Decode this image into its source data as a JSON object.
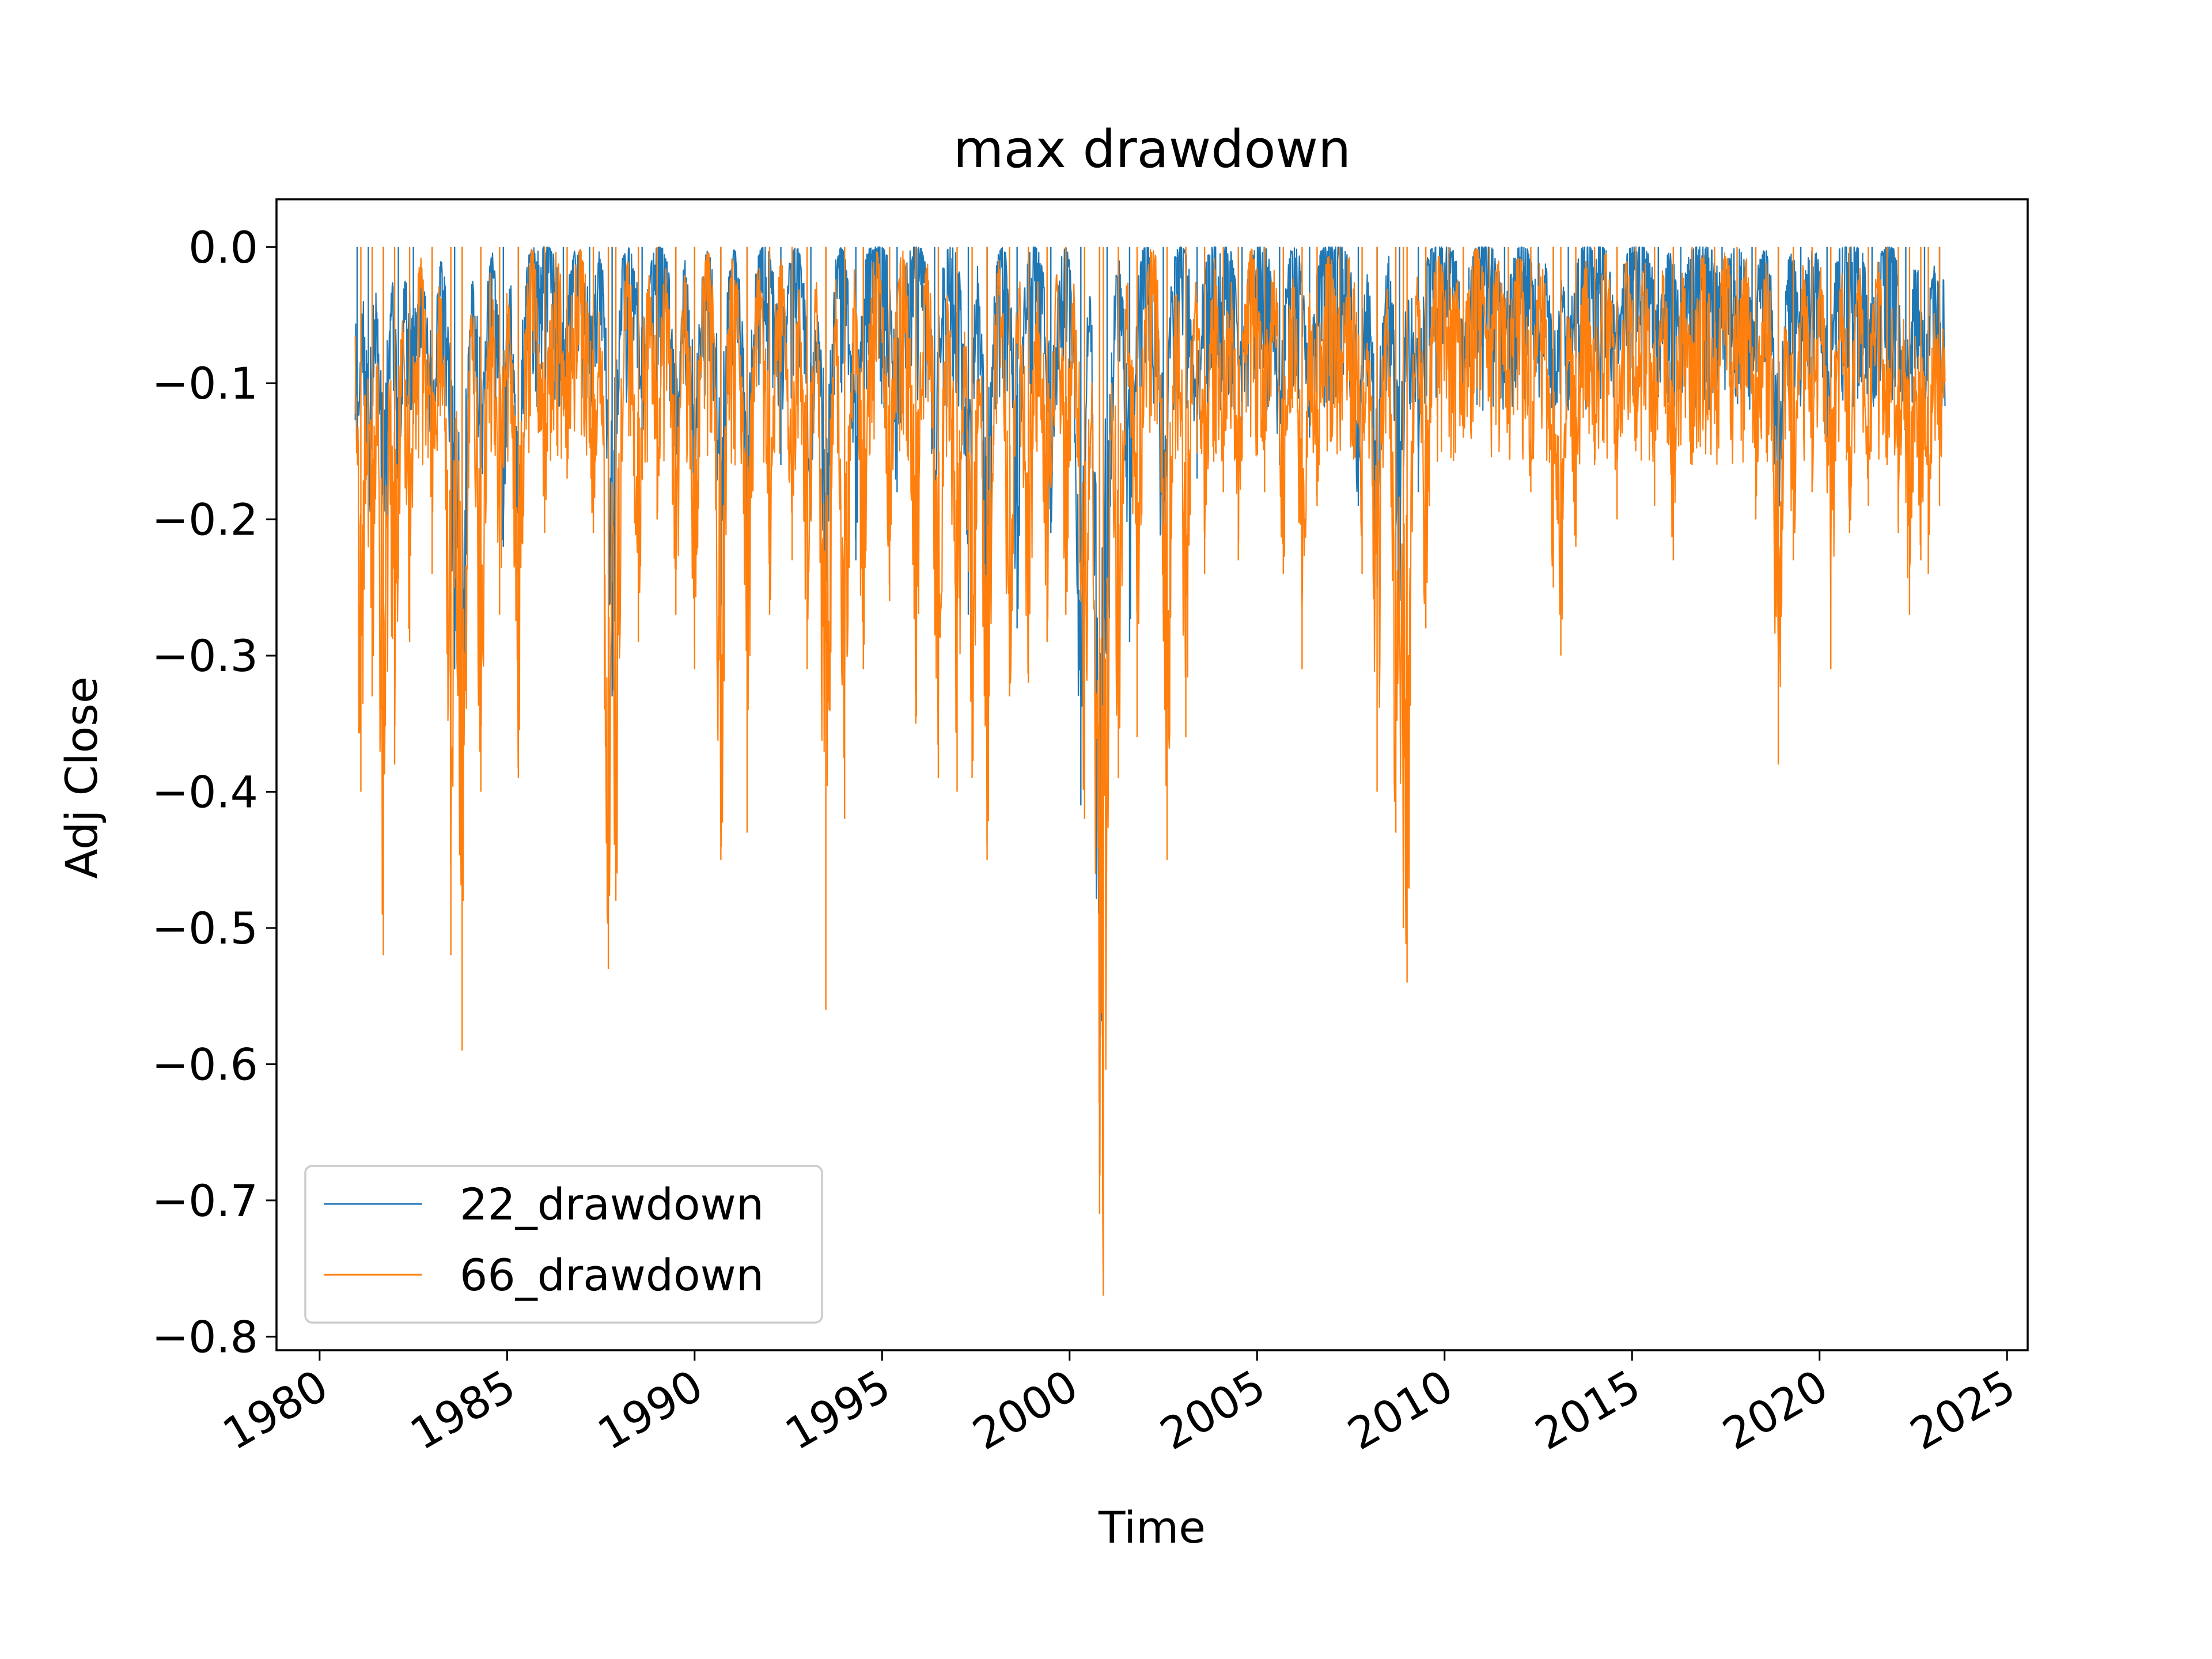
{
  "chart_data": {
    "type": "line",
    "title": "max drawdown",
    "xlabel": "Time",
    "ylabel": "Adj Close",
    "xlim": [
      1978.85,
      2025.55
    ],
    "ylim": [
      -0.81,
      0.035
    ],
    "xticks": [
      1980,
      1985,
      1990,
      1995,
      2000,
      2005,
      2010,
      2015,
      2020,
      2025
    ],
    "xtick_labels": [
      "1980",
      "1985",
      "1990",
      "1995",
      "2000",
      "2005",
      "2010",
      "2015",
      "2020",
      "2025"
    ],
    "yticks": [
      0.0,
      -0.1,
      -0.2,
      -0.3,
      -0.4,
      -0.5,
      -0.6,
      -0.7,
      -0.8
    ],
    "ytick_labels": [
      "0.0",
      "−0.1",
      "−0.2",
      "−0.3",
      "−0.4",
      "−0.5",
      "−0.6",
      "−0.7",
      "−0.8"
    ],
    "grid": false,
    "legend_position": "lower-left",
    "series": [
      {
        "name": "22_drawdown",
        "color": "#1f77b4",
        "minima": [
          [
            1981.0,
            -0.15
          ],
          [
            1981.3,
            -0.21
          ],
          [
            1981.7,
            -0.28
          ],
          [
            1982.1,
            -0.17
          ],
          [
            1982.5,
            -0.13
          ],
          [
            1983.0,
            -0.16
          ],
          [
            1983.6,
            -0.31
          ],
          [
            1983.8,
            -0.41
          ],
          [
            1984.3,
            -0.19
          ],
          [
            1984.9,
            -0.22
          ],
          [
            1985.3,
            -0.24
          ],
          [
            1986.5,
            -0.12
          ],
          [
            1987.2,
            -0.09
          ],
          [
            1987.8,
            -0.33
          ],
          [
            1988.6,
            -0.14
          ],
          [
            1989.5,
            -0.18
          ],
          [
            1990.0,
            -0.22
          ],
          [
            1990.7,
            -0.27
          ],
          [
            1991.4,
            -0.25
          ],
          [
            1992.3,
            -0.16
          ],
          [
            1993.1,
            -0.2
          ],
          [
            1993.5,
            -0.29
          ],
          [
            1994.3,
            -0.23
          ],
          [
            1995.4,
            -0.18
          ],
          [
            1996.4,
            -0.22
          ],
          [
            1997.3,
            -0.27
          ],
          [
            1997.8,
            -0.3
          ],
          [
            1998.6,
            -0.28
          ],
          [
            1999.5,
            -0.21
          ],
          [
            2000.3,
            -0.41
          ],
          [
            2000.8,
            -0.68
          ],
          [
            2001.0,
            -0.33
          ],
          [
            2001.6,
            -0.29
          ],
          [
            2002.5,
            -0.27
          ],
          [
            2003.4,
            -0.17
          ],
          [
            2004.6,
            -0.13
          ],
          [
            2005.6,
            -0.16
          ],
          [
            2006.4,
            -0.14
          ],
          [
            2007.7,
            -0.19
          ],
          [
            2008.2,
            -0.25
          ],
          [
            2008.8,
            -0.28
          ],
          [
            2009.3,
            -0.18
          ],
          [
            2010.5,
            -0.09
          ],
          [
            2011.6,
            -0.1
          ],
          [
            2012.5,
            -0.08
          ],
          [
            2012.9,
            -0.14
          ],
          [
            2013.3,
            -0.12
          ],
          [
            2014.6,
            -0.09
          ],
          [
            2015.7,
            -0.11
          ],
          [
            2016.3,
            -0.08
          ],
          [
            2017.4,
            -0.06
          ],
          [
            2018.2,
            -0.09
          ],
          [
            2018.9,
            -0.23
          ],
          [
            2019.5,
            -0.08
          ],
          [
            2020.2,
            -0.16
          ],
          [
            2021.4,
            -0.1
          ],
          [
            2022.3,
            -0.15
          ],
          [
            2022.8,
            -0.14
          ],
          [
            2023.2,
            -0.06
          ]
        ]
      },
      {
        "name": "66_drawdown",
        "color": "#ff7f0e",
        "minima": [
          [
            1981.1,
            -0.4
          ],
          [
            1981.4,
            -0.33
          ],
          [
            1981.7,
            -0.52
          ],
          [
            1982.0,
            -0.38
          ],
          [
            1982.4,
            -0.29
          ],
          [
            1983.0,
            -0.24
          ],
          [
            1983.5,
            -0.52
          ],
          [
            1983.8,
            -0.59
          ],
          [
            1984.3,
            -0.4
          ],
          [
            1984.8,
            -0.27
          ],
          [
            1985.3,
            -0.39
          ],
          [
            1986.0,
            -0.21
          ],
          [
            1986.6,
            -0.17
          ],
          [
            1987.3,
            -0.21
          ],
          [
            1987.7,
            -0.53
          ],
          [
            1987.9,
            -0.48
          ],
          [
            1988.5,
            -0.29
          ],
          [
            1989.0,
            -0.2
          ],
          [
            1989.5,
            -0.27
          ],
          [
            1990.0,
            -0.31
          ],
          [
            1990.7,
            -0.45
          ],
          [
            1991.4,
            -0.43
          ],
          [
            1992.0,
            -0.27
          ],
          [
            1992.6,
            -0.23
          ],
          [
            1993.0,
            -0.31
          ],
          [
            1993.5,
            -0.56
          ],
          [
            1994.0,
            -0.42
          ],
          [
            1994.5,
            -0.31
          ],
          [
            1995.2,
            -0.26
          ],
          [
            1995.9,
            -0.35
          ],
          [
            1996.5,
            -0.39
          ],
          [
            1997.0,
            -0.4
          ],
          [
            1997.4,
            -0.39
          ],
          [
            1997.8,
            -0.45
          ],
          [
            1998.4,
            -0.33
          ],
          [
            1998.9,
            -0.32
          ],
          [
            1999.4,
            -0.29
          ],
          [
            1999.9,
            -0.27
          ],
          [
            2000.4,
            -0.42
          ],
          [
            2000.8,
            -0.71
          ],
          [
            2000.9,
            -0.77
          ],
          [
            2001.3,
            -0.39
          ],
          [
            2001.8,
            -0.36
          ],
          [
            2002.6,
            -0.45
          ],
          [
            2003.1,
            -0.36
          ],
          [
            2003.6,
            -0.24
          ],
          [
            2004.1,
            -0.18
          ],
          [
            2004.5,
            -0.23
          ],
          [
            2005.2,
            -0.18
          ],
          [
            2005.7,
            -0.24
          ],
          [
            2006.2,
            -0.31
          ],
          [
            2006.6,
            -0.19
          ],
          [
            2007.2,
            -0.12
          ],
          [
            2007.8,
            -0.24
          ],
          [
            2008.2,
            -0.4
          ],
          [
            2008.7,
            -0.43
          ],
          [
            2008.9,
            -0.5
          ],
          [
            2009.0,
            -0.54
          ],
          [
            2009.5,
            -0.28
          ],
          [
            2010.1,
            -0.09
          ],
          [
            2010.5,
            -0.14
          ],
          [
            2011.2,
            -0.11
          ],
          [
            2011.7,
            -0.13
          ],
          [
            2012.3,
            -0.18
          ],
          [
            2012.9,
            -0.25
          ],
          [
            2013.1,
            -0.3
          ],
          [
            2013.5,
            -0.22
          ],
          [
            2014.0,
            -0.16
          ],
          [
            2014.6,
            -0.2
          ],
          [
            2015.1,
            -0.15
          ],
          [
            2015.6,
            -0.19
          ],
          [
            2016.1,
            -0.23
          ],
          [
            2016.6,
            -0.16
          ],
          [
            2017.2,
            -0.13
          ],
          [
            2017.8,
            -0.11
          ],
          [
            2018.3,
            -0.2
          ],
          [
            2018.9,
            -0.38
          ],
          [
            2019.3,
            -0.23
          ],
          [
            2019.8,
            -0.18
          ],
          [
            2020.3,
            -0.31
          ],
          [
            2020.8,
            -0.21
          ],
          [
            2021.3,
            -0.19
          ],
          [
            2021.8,
            -0.16
          ],
          [
            2022.1,
            -0.21
          ],
          [
            2022.4,
            -0.27
          ],
          [
            2022.7,
            -0.23
          ],
          [
            2022.9,
            -0.24
          ],
          [
            2023.2,
            -0.19
          ]
        ]
      }
    ]
  }
}
